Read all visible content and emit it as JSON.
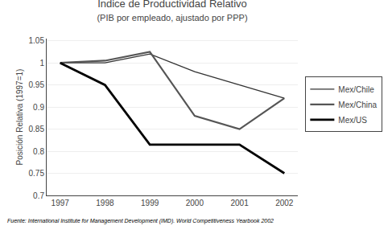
{
  "chart_data": {
    "type": "line",
    "title": "Índice de Productividad Relativo",
    "subtitle": "(PIB por empleado, ajustado por PPP)",
    "ylabel": "Posición Relativa (1997=1)",
    "annotations": [
      "Fuente: International Institute for Management Development (IMD). World Competitiveness Yearbook 2002"
    ],
    "x": [
      1997,
      1998,
      1999,
      2000,
      2001,
      2002
    ],
    "series": [
      {
        "name": "Mex/Chile",
        "color": "#333333",
        "values": [
          1.0,
          1.0,
          1.02,
          0.98,
          0.95,
          0.92
        ]
      },
      {
        "name": "Mex/China",
        "color": "#555555",
        "values": [
          1.0,
          1.005,
          1.025,
          0.88,
          0.85,
          0.92
        ]
      },
      {
        "name": "Mex/US",
        "color": "#000000",
        "values": [
          1.0,
          0.95,
          0.815,
          0.815,
          0.815,
          0.75
        ]
      }
    ],
    "xlim": [
      1996.7,
      2002.3
    ],
    "xticks": [
      1997,
      1998,
      1999,
      2000,
      2001,
      2002
    ],
    "ylim": [
      0.7,
      1.055
    ],
    "yticks": [
      0.7,
      0.75,
      0.8,
      0.85,
      0.9,
      0.95,
      1,
      1.05
    ],
    "grid": true,
    "legend": "right"
  }
}
